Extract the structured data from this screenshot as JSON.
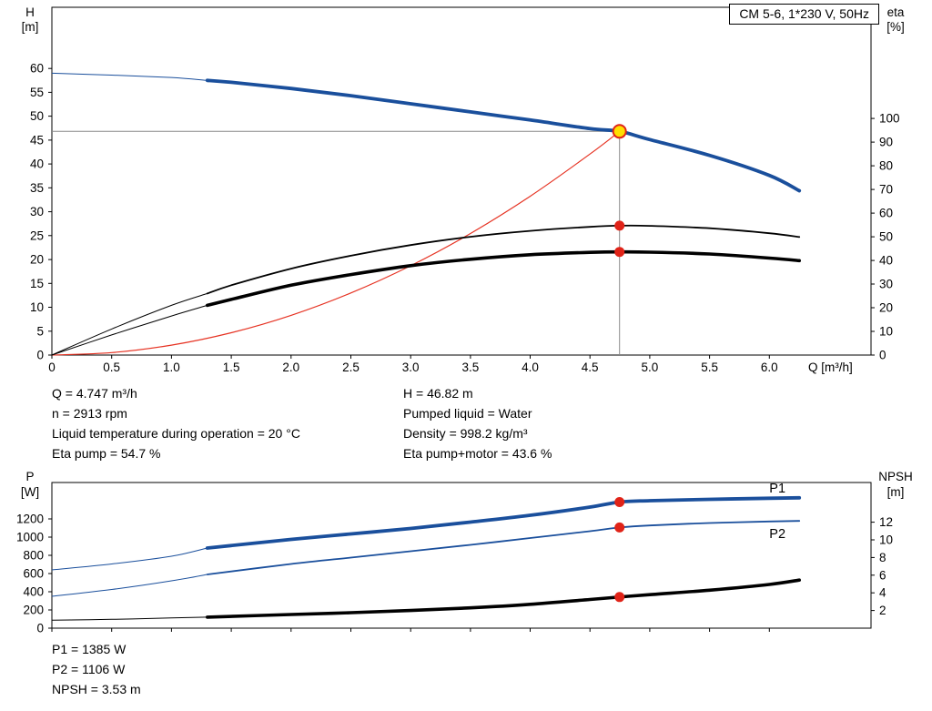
{
  "colors": {
    "curve_blue": "#1a4f9c",
    "curve_black": "#000000",
    "curve_red": "#e63323",
    "marker_red": "#e02318",
    "duty_fill": "#ffdf00",
    "crosshair": "#8a8a8a",
    "frame": "#000000",
    "background": "#ffffff"
  },
  "title_box": {
    "label": "CM 5-6, 1*230 V, 50Hz"
  },
  "info_panel": {
    "left_lines": [
      "Q = 4.747 m³/h",
      "n = 2913 rpm",
      "Liquid temperature during operation = 20 °C",
      "Eta pump = 54.7 %"
    ],
    "right_lines": [
      "H = 46.82 m",
      "Pumped liquid = Water",
      "Density = 998.2 kg/m³",
      "Eta pump+motor = 43.6 %"
    ]
  },
  "result_lines": [
    "P1 = 1385 W",
    "P2 = 1106 W",
    "NPSH = 3.53 m"
  ],
  "chart_data": [
    {
      "id": "qh",
      "type": "line",
      "x_axis": {
        "label": "Q [m³/h]",
        "range": [
          0,
          6.85
        ],
        "ticks": [
          0,
          0.5,
          1,
          1.5,
          2,
          2.5,
          3,
          3.5,
          4,
          4.5,
          5,
          5.5,
          6
        ],
        "tick_labels": [
          "0",
          "0.5",
          "1.0",
          "1.5",
          "2.0",
          "2.5",
          "3.0",
          "3.5",
          "4.0",
          "4.5",
          "5.0",
          "5.5",
          "6.0"
        ]
      },
      "y_left": {
        "label_lines": [
          "H",
          "[m]"
        ],
        "range": [
          0,
          72.8
        ],
        "ticks": [
          0,
          5,
          10,
          15,
          20,
          25,
          30,
          35,
          40,
          45,
          50,
          55,
          60
        ],
        "tick_labels": [
          "0",
          "5",
          "10",
          "15",
          "20",
          "25",
          "30",
          "35",
          "40",
          "45",
          "50",
          "55",
          "60"
        ]
      },
      "y_right": {
        "label_lines": [
          "eta",
          "[%]"
        ],
        "range": [
          0,
          147
        ],
        "ticks": [
          0,
          10,
          20,
          30,
          40,
          50,
          60,
          70,
          80,
          90,
          100
        ],
        "tick_labels": [
          "0",
          "10",
          "20",
          "30",
          "40",
          "50",
          "60",
          "70",
          "80",
          "90",
          "100"
        ]
      },
      "series": [
        {
          "name": "system-curve",
          "axis": "left",
          "color": "curve_red",
          "width": 1.2,
          "x": [
            0,
            0.5,
            1,
            1.5,
            2,
            2.5,
            3,
            3.5,
            4,
            4.5,
            4.747
          ],
          "y": [
            0,
            0.52,
            2.08,
            4.67,
            8.31,
            12.99,
            18.7,
            25.45,
            33.24,
            42.07,
            46.82
          ]
        },
        {
          "name": "eta-pump-curve",
          "axis": "right",
          "color": "curve_black",
          "width": 1,
          "width_thick": 1.8,
          "thick_from": 1.3,
          "x": [
            0,
            0.5,
            1,
            1.3,
            1.5,
            2,
            2.5,
            3,
            3.5,
            4,
            4.5,
            4.747,
            5,
            5.5,
            6,
            6.25
          ],
          "y": [
            0,
            11,
            21,
            26,
            29.5,
            36.5,
            42,
            46.5,
            50,
            52.5,
            54.2,
            54.7,
            54.6,
            53.6,
            51.5,
            49.9
          ]
        },
        {
          "name": "eta-pump-motor-curve",
          "axis": "right",
          "color": "curve_black",
          "width": 1,
          "width_thick": 3.6,
          "thick_from": 1.3,
          "x": [
            0,
            0.5,
            1,
            1.3,
            1.5,
            2,
            2.5,
            3,
            3.5,
            4,
            4.5,
            4.747,
            5,
            5.5,
            6,
            6.25
          ],
          "y": [
            0,
            8.5,
            16.5,
            21,
            23.5,
            29.5,
            34,
            37.8,
            40.5,
            42.4,
            43.4,
            43.6,
            43.5,
            42.7,
            41,
            39.9
          ]
        },
        {
          "name": "head-curve",
          "axis": "left",
          "color": "curve_blue",
          "width": 1,
          "width_thick": 3.8,
          "thick_from": 1.3,
          "x": [
            0,
            0.5,
            1,
            1.3,
            1.5,
            2,
            2.5,
            3,
            3.5,
            4,
            4.5,
            4.747,
            5,
            5.5,
            6,
            6.25
          ],
          "y": [
            59,
            58.6,
            58.1,
            57.5,
            57.1,
            55.8,
            54.3,
            52.6,
            50.9,
            49.2,
            47.4,
            46.82,
            45.1,
            41.8,
            37.6,
            34.4
          ]
        }
      ],
      "crosshair": {
        "x": 4.747,
        "y": 46.82,
        "axis": "left"
      },
      "markers": [
        {
          "style": "dot",
          "axis": "right",
          "x": 4.747,
          "y": 54.7,
          "name": "eta-pump-point"
        },
        {
          "style": "dot",
          "axis": "right",
          "x": 4.747,
          "y": 43.6,
          "name": "eta-pump-motor-point"
        },
        {
          "style": "duty",
          "axis": "left",
          "x": 4.747,
          "y": 46.82,
          "name": "duty-point"
        }
      ],
      "annotations": []
    },
    {
      "id": "power-npsh",
      "type": "line",
      "x_axis": {
        "label": "",
        "range": [
          0,
          6.85
        ],
        "ticks": [
          0,
          0.5,
          1,
          1.5,
          2,
          2.5,
          3,
          3.5,
          4,
          4.5,
          5,
          5.5,
          6
        ],
        "tick_labels": null
      },
      "y_left": {
        "label_lines": [
          "P",
          "[W]"
        ],
        "range": [
          0,
          1600
        ],
        "ticks": [
          0,
          200,
          400,
          600,
          800,
          1000,
          1200
        ],
        "tick_labels": [
          "0",
          "200",
          "400",
          "600",
          "800",
          "1000",
          "1200"
        ]
      },
      "y_right": {
        "label_lines": [
          "NPSH",
          "[m]"
        ],
        "range": [
          0,
          16.5
        ],
        "ticks": [
          2,
          4,
          6,
          8,
          10,
          12
        ],
        "tick_labels": [
          "2",
          "4",
          "6",
          "8",
          "10",
          "12"
        ]
      },
      "series": [
        {
          "name": "p2-curve",
          "axis": "left",
          "color": "curve_blue",
          "width": 1,
          "width_thick": 1.8,
          "thick_from": 1.3,
          "x": [
            0,
            0.5,
            1,
            1.3,
            2,
            2.5,
            3,
            3.5,
            4,
            4.5,
            4.747,
            5,
            5.5,
            6,
            6.25
          ],
          "y": [
            350,
            425,
            520,
            590,
            705,
            775,
            845,
            915,
            990,
            1065,
            1106,
            1128,
            1155,
            1172,
            1178
          ]
        },
        {
          "name": "npsh-curve",
          "axis": "right",
          "color": "curve_black",
          "width": 1,
          "width_thick": 3.6,
          "thick_from": 1.3,
          "x": [
            0,
            0.5,
            1,
            1.3,
            2,
            2.5,
            3,
            3.5,
            4,
            4.5,
            4.747,
            5,
            5.5,
            6,
            6.25
          ],
          "y": [
            0.9,
            1.0,
            1.15,
            1.25,
            1.55,
            1.75,
            2.0,
            2.3,
            2.7,
            3.25,
            3.53,
            3.8,
            4.3,
            4.95,
            5.45
          ]
        },
        {
          "name": "p1-curve",
          "axis": "left",
          "color": "curve_blue",
          "width": 1,
          "width_thick": 3.8,
          "thick_from": 1.3,
          "x": [
            0,
            0.5,
            1,
            1.3,
            2,
            2.5,
            3,
            3.5,
            4,
            4.5,
            4.747,
            5,
            5.5,
            6,
            6.25
          ],
          "y": [
            640,
            705,
            790,
            880,
            975,
            1035,
            1095,
            1165,
            1240,
            1330,
            1385,
            1400,
            1415,
            1427,
            1432
          ]
        }
      ],
      "markers": [
        {
          "style": "dot",
          "axis": "left",
          "x": 4.747,
          "y": 1385,
          "name": "p1-point"
        },
        {
          "style": "dot",
          "axis": "left",
          "x": 4.747,
          "y": 1106,
          "name": "p2-point"
        },
        {
          "style": "dot",
          "axis": "right",
          "x": 4.747,
          "y": 3.53,
          "name": "npsh-point"
        }
      ],
      "annotations": [
        {
          "text": "P1",
          "axis": "left",
          "x": 6.0,
          "y": 1490,
          "color": "curve_blue"
        },
        {
          "text": "P2",
          "axis": "left",
          "x": 6.0,
          "y": 990,
          "color": "curve_blue"
        }
      ]
    }
  ]
}
